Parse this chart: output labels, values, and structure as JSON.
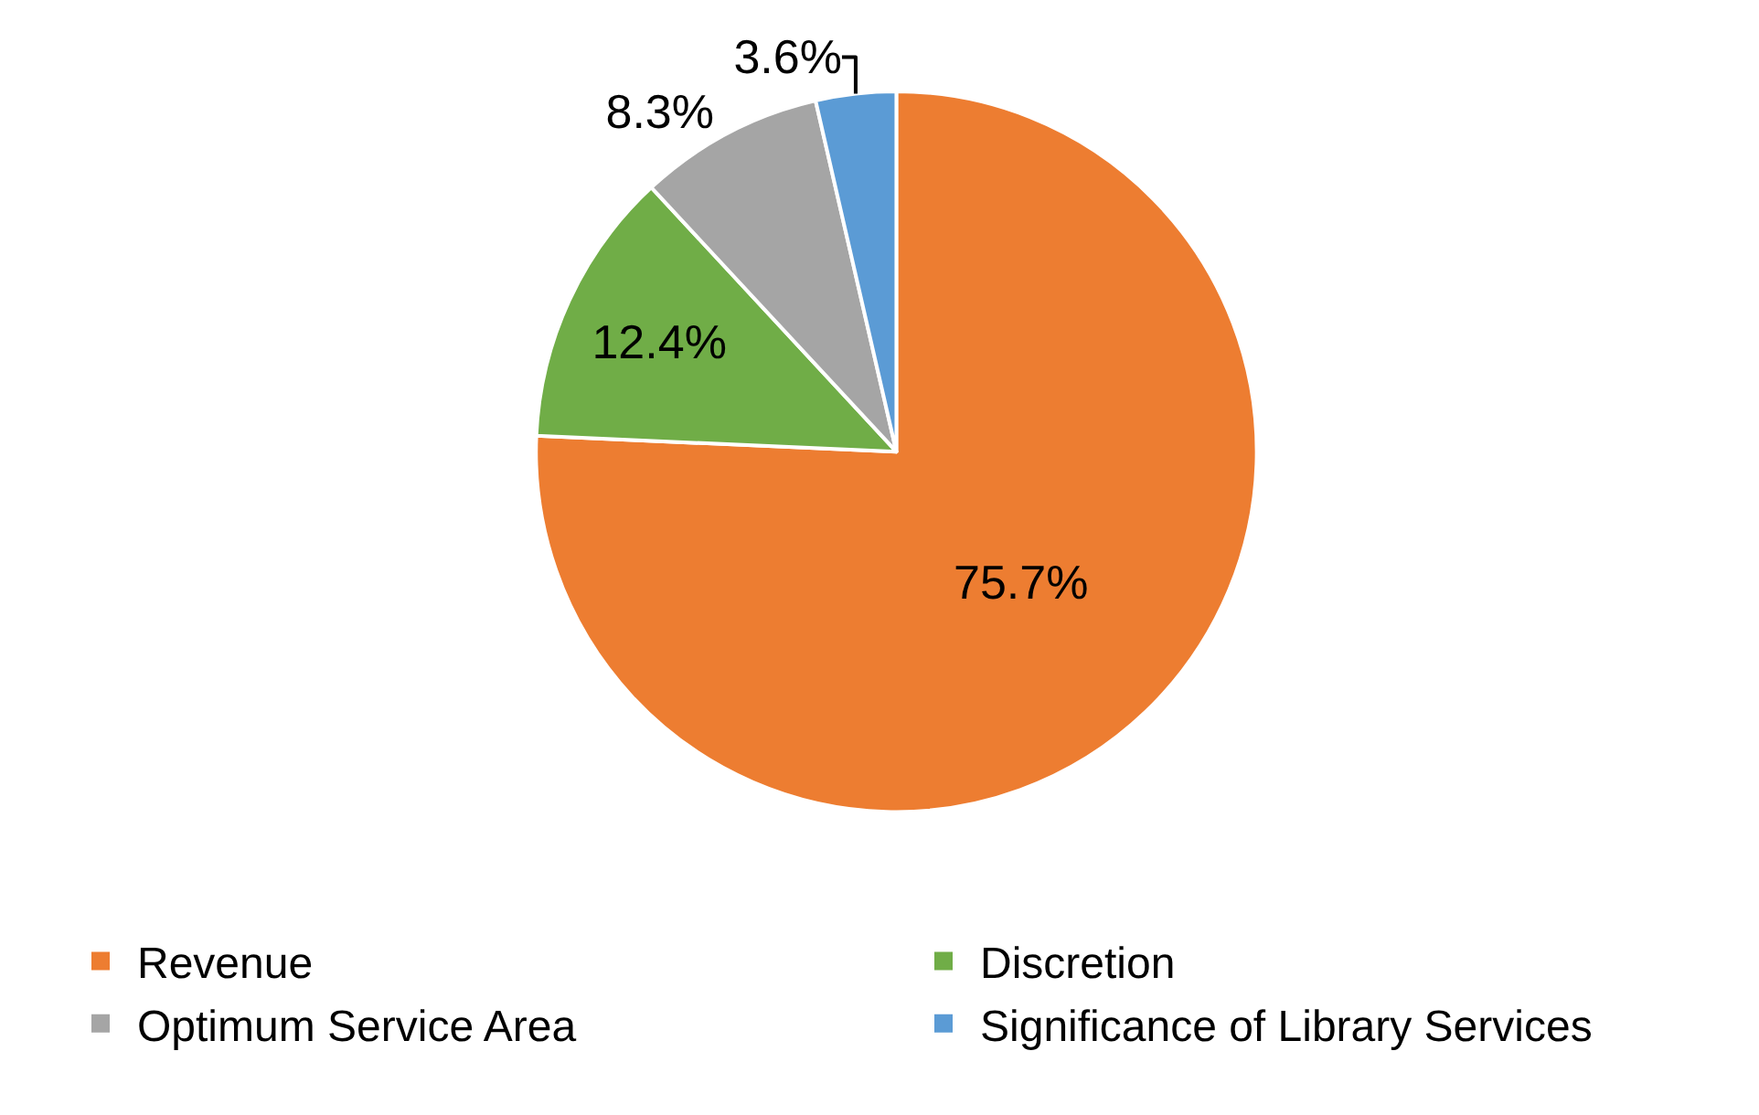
{
  "chart_data": {
    "type": "pie",
    "categories": [
      "Revenue",
      "Discretion",
      "Optimum Service Area",
      "Significance of Library Services"
    ],
    "values": [
      75.7,
      12.4,
      8.3,
      3.6
    ],
    "colors": [
      "#ed7d31",
      "#70ad47",
      "#a5a5a5",
      "#5b9bd5"
    ],
    "value_labels": [
      "75.7%",
      "12.4%",
      "8.3%",
      "3.6%"
    ],
    "legend": "bottom"
  }
}
